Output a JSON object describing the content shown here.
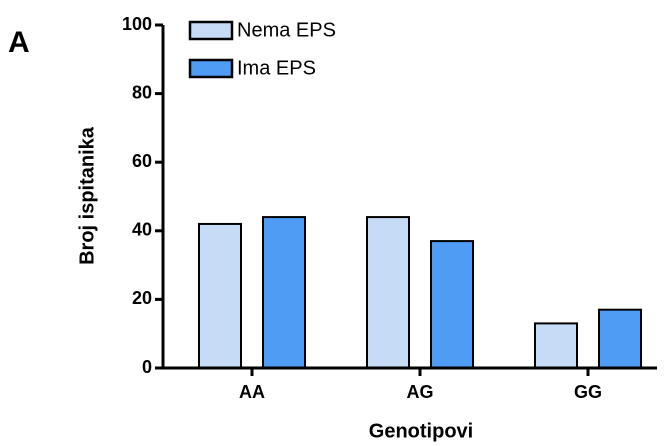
{
  "chart_data": {
    "type": "bar",
    "panel_label": "A",
    "xlabel": "Genotipovi",
    "ylabel": "Broj ispitanika",
    "categories": [
      "AA",
      "AG",
      "GG"
    ],
    "series": [
      {
        "name": "Nema EPS",
        "color": "#c6dcf6",
        "values": [
          42,
          44,
          13
        ]
      },
      {
        "name": "Ima EPS",
        "color": "#4f9cf5",
        "values": [
          44,
          37,
          17
        ]
      }
    ],
    "ylim": [
      0,
      100
    ],
    "yticks": [
      0,
      20,
      40,
      60,
      80,
      100
    ],
    "legend": "upper left"
  }
}
